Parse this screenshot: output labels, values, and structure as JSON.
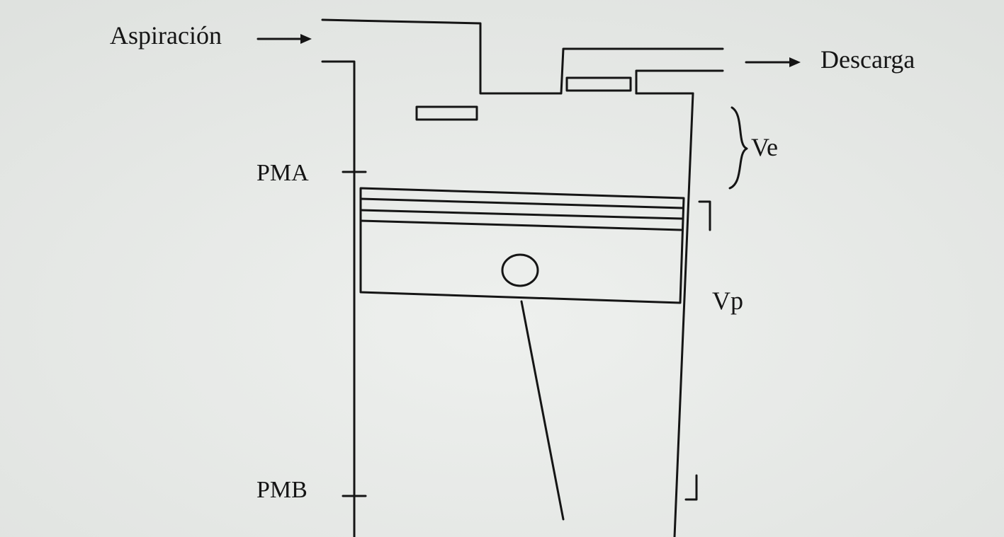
{
  "diagram": {
    "labels": {
      "intake": "Aspiración",
      "discharge": "Descarga",
      "top_dead_center": "PMA",
      "bottom_dead_center": "PMB",
      "dead_volume": "Ve",
      "swept_volume": "Vp"
    },
    "colors": {
      "paper": "#e9ebe9",
      "ink": "#151515"
    }
  }
}
